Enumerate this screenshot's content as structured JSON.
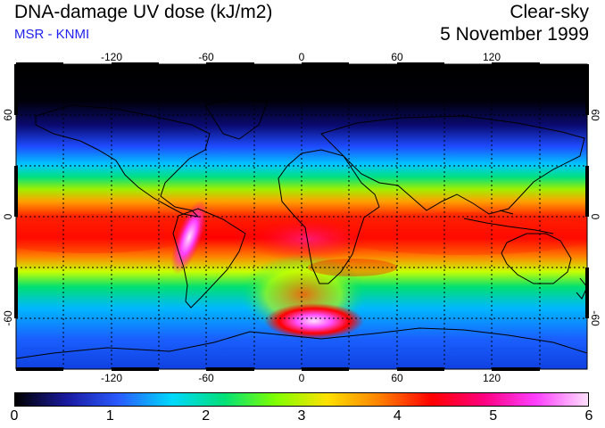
{
  "header": {
    "title": "DNA-damage UV dose (kJ/m2)",
    "source": "MSR - KNMI",
    "sky_condition": "Clear-sky",
    "date": "5 November 1999"
  },
  "map": {
    "projection": "equirectangular",
    "lon_range": [
      -180,
      180
    ],
    "lat_range": [
      -90,
      90
    ],
    "lon_ticks": [
      "-120",
      "-60",
      "0",
      "60",
      "120"
    ],
    "lat_ticks": [
      "60",
      "0",
      "-60"
    ],
    "gridlines_dashed": true,
    "units": "kJ/m2"
  },
  "colorbar": {
    "min": 0,
    "max": 6,
    "labels": [
      "0",
      "1",
      "2",
      "3",
      "4",
      "5",
      "6"
    ],
    "stops": [
      "#000000",
      "#1a1aa0",
      "#2a5cff",
      "#00d8ff",
      "#00e07a",
      "#80ff00",
      "#ffe000",
      "#ff8000",
      "#ff0000",
      "#ff0080",
      "#ff40ff",
      "#ffe0ff"
    ]
  },
  "colors": {
    "title": "#000000",
    "source_text": "#2222ee",
    "coastline": "#000000",
    "grid": "#000000"
  }
}
